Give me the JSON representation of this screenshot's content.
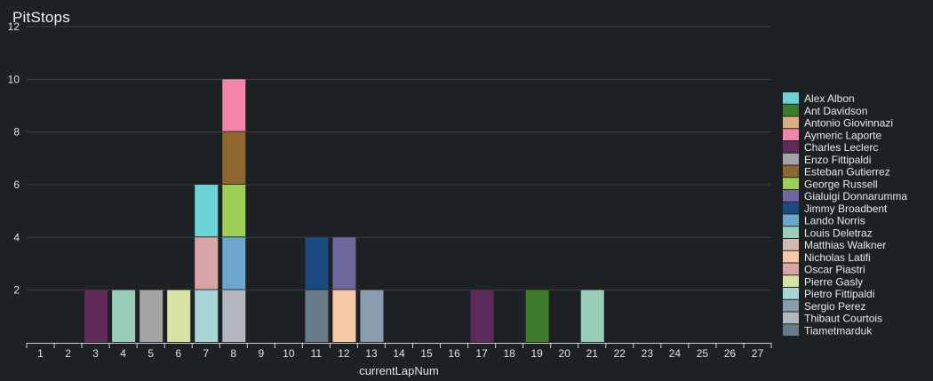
{
  "chart_data": {
    "type": "bar",
    "stacked": true,
    "title": "PitStops",
    "xlabel": "currentLapNum",
    "ylabel": "",
    "ylim": [
      0,
      12
    ],
    "yticks": [
      2,
      4,
      6,
      8,
      10,
      12
    ],
    "grid": true,
    "legend_position": "right",
    "categories": [
      "1",
      "2",
      "3",
      "4",
      "5",
      "6",
      "7",
      "8",
      "9",
      "10",
      "11",
      "12",
      "13",
      "14",
      "15",
      "16",
      "17",
      "18",
      "19",
      "20",
      "21",
      "22",
      "23",
      "24",
      "25",
      "26",
      "27"
    ],
    "series": [
      {
        "name": "Alex Albon",
        "color": "#6ad3d6",
        "values": [
          0,
          0,
          0,
          0,
          0,
          0,
          2,
          0,
          0,
          0,
          0,
          0,
          0,
          0,
          0,
          0,
          0,
          0,
          0,
          0,
          0,
          0,
          0,
          0,
          0,
          0,
          0
        ]
      },
      {
        "name": "Ant Davidson",
        "color": "#3d7a2a",
        "values": [
          0,
          0,
          0,
          0,
          0,
          0,
          0,
          0,
          0,
          0,
          0,
          0,
          0,
          0,
          0,
          0,
          0,
          0,
          2,
          0,
          0,
          0,
          0,
          0,
          0,
          0,
          0
        ]
      },
      {
        "name": "Antonio Giovinnazi",
        "color": "#dcae85",
        "values": [
          0,
          0,
          0,
          0,
          0,
          0,
          0,
          0,
          0,
          0,
          0,
          0,
          0,
          0,
          0,
          0,
          0,
          0,
          0,
          0,
          0,
          0,
          0,
          0,
          0,
          0,
          0
        ]
      },
      {
        "name": "Aymeric Laporte",
        "color": "#f285a8",
        "values": [
          0,
          0,
          0,
          0,
          0,
          0,
          0,
          2,
          0,
          0,
          0,
          0,
          0,
          0,
          0,
          0,
          0,
          0,
          0,
          0,
          0,
          0,
          0,
          0,
          0,
          0,
          0
        ]
      },
      {
        "name": "Charles Leclerc",
        "color": "#5f2a5a",
        "values": [
          0,
          0,
          2,
          0,
          0,
          0,
          0,
          0,
          0,
          0,
          0,
          0,
          0,
          0,
          0,
          0,
          2,
          0,
          0,
          0,
          0,
          0,
          0,
          0,
          0,
          0,
          0
        ]
      },
      {
        "name": "Enzo Fittipaldi",
        "color": "#a4a4a4",
        "values": [
          0,
          0,
          0,
          0,
          2,
          0,
          0,
          0,
          0,
          0,
          0,
          0,
          0,
          0,
          0,
          0,
          0,
          0,
          0,
          0,
          0,
          0,
          0,
          0,
          0,
          0,
          0
        ]
      },
      {
        "name": "Esteban Gutierrez",
        "color": "#8f6630",
        "values": [
          0,
          0,
          0,
          0,
          0,
          0,
          0,
          2,
          0,
          0,
          0,
          0,
          0,
          0,
          0,
          0,
          0,
          0,
          0,
          0,
          0,
          0,
          0,
          0,
          0,
          0,
          0
        ]
      },
      {
        "name": "George Russell",
        "color": "#9ccf53",
        "values": [
          0,
          0,
          0,
          0,
          0,
          0,
          0,
          2,
          0,
          0,
          0,
          0,
          0,
          0,
          0,
          0,
          0,
          0,
          0,
          0,
          0,
          0,
          0,
          0,
          0,
          0,
          0
        ]
      },
      {
        "name": "Gialuigi Donnarumma",
        "color": "#6c679d",
        "values": [
          0,
          0,
          0,
          0,
          0,
          0,
          0,
          0,
          0,
          0,
          0,
          2,
          0,
          0,
          0,
          0,
          0,
          0,
          0,
          0,
          0,
          0,
          0,
          0,
          0,
          0,
          0
        ]
      },
      {
        "name": "Jimmy Broadbent",
        "color": "#1a4a7e",
        "values": [
          0,
          0,
          0,
          0,
          0,
          0,
          0,
          0,
          0,
          0,
          2,
          0,
          0,
          0,
          0,
          0,
          0,
          0,
          0,
          0,
          0,
          0,
          0,
          0,
          0,
          0,
          0
        ]
      },
      {
        "name": "Lando Norris",
        "color": "#6ba6cd",
        "values": [
          0,
          0,
          0,
          0,
          0,
          0,
          0,
          2,
          0,
          0,
          0,
          0,
          0,
          0,
          0,
          0,
          0,
          0,
          0,
          0,
          0,
          0,
          0,
          0,
          0,
          0,
          0
        ]
      },
      {
        "name": "Louis Deletraz",
        "color": "#98cfb6",
        "values": [
          0,
          0,
          0,
          2,
          0,
          0,
          0,
          0,
          0,
          0,
          0,
          0,
          0,
          0,
          0,
          0,
          0,
          0,
          0,
          0,
          2,
          0,
          0,
          0,
          0,
          0,
          0
        ]
      },
      {
        "name": "Matthias Walkner",
        "color": "#cfbcaf",
        "values": [
          0,
          0,
          0,
          0,
          0,
          0,
          0,
          0,
          0,
          0,
          0,
          0,
          0,
          0,
          0,
          0,
          0,
          0,
          0,
          0,
          0,
          0,
          0,
          0,
          0,
          0,
          0
        ]
      },
      {
        "name": "Nicholas Latifi",
        "color": "#f6c8a3",
        "values": [
          0,
          0,
          0,
          0,
          0,
          0,
          0,
          0,
          0,
          0,
          0,
          2,
          0,
          0,
          0,
          0,
          0,
          0,
          0,
          0,
          0,
          0,
          0,
          0,
          0,
          0,
          0
        ]
      },
      {
        "name": "Oscar Piastri",
        "color": "#d9a4a6",
        "values": [
          0,
          0,
          0,
          0,
          0,
          0,
          2,
          0,
          0,
          0,
          0,
          0,
          0,
          0,
          0,
          0,
          0,
          0,
          0,
          0,
          0,
          0,
          0,
          0,
          0,
          0,
          0
        ]
      },
      {
        "name": "Pierre Gasly",
        "color": "#d8e3a3",
        "values": [
          0,
          0,
          0,
          0,
          0,
          2,
          0,
          0,
          0,
          0,
          0,
          0,
          0,
          0,
          0,
          0,
          0,
          0,
          0,
          0,
          0,
          0,
          0,
          0,
          0,
          0,
          0
        ]
      },
      {
        "name": "Pietro Fittipaldi",
        "color": "#a8d6d7",
        "values": [
          0,
          0,
          0,
          0,
          0,
          0,
          2,
          0,
          0,
          0,
          0,
          0,
          0,
          0,
          0,
          0,
          0,
          0,
          0,
          0,
          0,
          0,
          0,
          0,
          0,
          0,
          0
        ]
      },
      {
        "name": "Sergio Perez",
        "color": "#8b9cb1",
        "values": [
          0,
          0,
          0,
          0,
          0,
          0,
          0,
          0,
          0,
          0,
          0,
          0,
          2,
          0,
          0,
          0,
          0,
          0,
          0,
          0,
          0,
          0,
          0,
          0,
          0,
          0,
          0
        ]
      },
      {
        "name": "Thibaut Courtois",
        "color": "#b3b8c0",
        "values": [
          0,
          0,
          0,
          0,
          0,
          0,
          0,
          2,
          0,
          0,
          0,
          0,
          0,
          0,
          0,
          0,
          0,
          0,
          0,
          0,
          0,
          0,
          0,
          0,
          0,
          0,
          0
        ]
      },
      {
        "name": "Tiametmarduk",
        "color": "#677a88",
        "values": [
          0,
          0,
          0,
          0,
          0,
          0,
          0,
          0,
          0,
          0,
          2,
          0,
          0,
          0,
          0,
          0,
          0,
          0,
          0,
          0,
          0,
          0,
          0,
          0,
          0,
          0,
          0
        ]
      }
    ],
    "stack_order_bottom_to_top": [
      "Pietro Fittipaldi",
      "Thibaut Courtois",
      "Tiametmarduk",
      "Nicholas Latifi",
      "Oscar Piastri",
      "Lando Norris",
      "Jimmy Broadbent",
      "Gialuigi Donnarumma",
      "Alex Albon",
      "George Russell",
      "Esteban Gutierrez",
      "Aymeric Laporte",
      "Charles Leclerc",
      "Louis Deletraz",
      "Enzo Fittipaldi",
      "Pierre Gasly",
      "Sergio Perez",
      "Ant Davidson",
      "Antonio Giovinnazi",
      "Matthias Walkner"
    ]
  }
}
